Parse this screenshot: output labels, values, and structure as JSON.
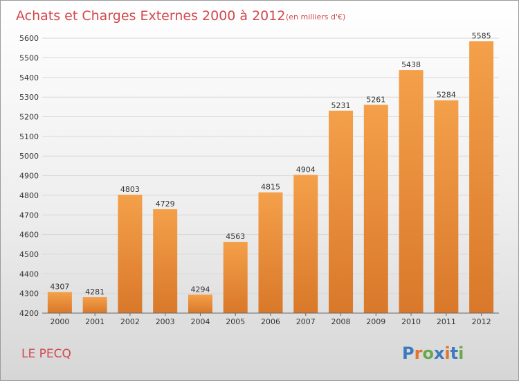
{
  "chart_data": {
    "type": "bar",
    "title": "Achats et Charges Externes 2000 à 2012",
    "subtitle": "(en milliers d'€)",
    "categories": [
      "2000",
      "2001",
      "2002",
      "2003",
      "2004",
      "2005",
      "2006",
      "2007",
      "2008",
      "2009",
      "2010",
      "2011",
      "2012"
    ],
    "values": [
      4307,
      4281,
      4803,
      4729,
      4294,
      4563,
      4815,
      4904,
      5231,
      5261,
      5438,
      5284,
      5585
    ],
    "ylim": [
      4200,
      5650
    ],
    "yticks": [
      4200,
      4300,
      4400,
      4500,
      4600,
      4700,
      4800,
      4900,
      5000,
      5100,
      5200,
      5300,
      5400,
      5500,
      5600
    ],
    "grid": true,
    "bar_color": "#f4a04a",
    "bar_color_dark": "#d9782a"
  },
  "commune": "LE PECQ",
  "brand": {
    "letters": [
      "P",
      "r",
      "o",
      "x",
      "i",
      "t",
      "i"
    ],
    "colors": [
      "#3b7bbf",
      "#e0762c",
      "#6aa84f",
      "#3b7bbf",
      "#e0762c",
      "#3b7bbf",
      "#6aa84f"
    ]
  }
}
